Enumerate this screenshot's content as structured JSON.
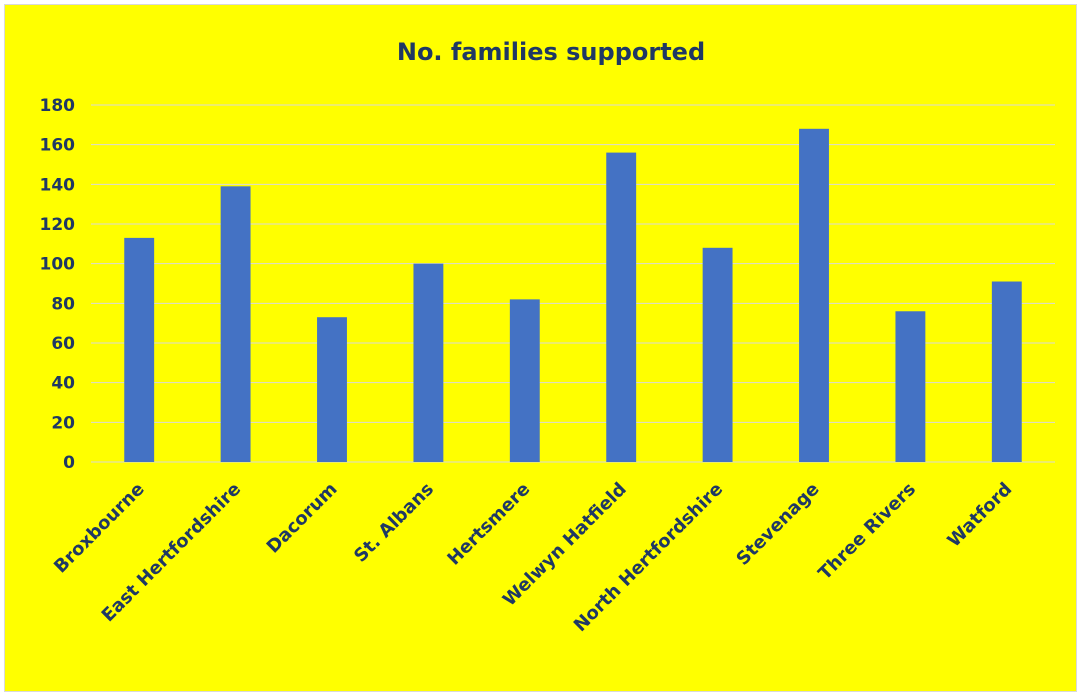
{
  "chart_data": {
    "type": "bar",
    "title": "No. families supported",
    "xlabel": "",
    "ylabel": "",
    "categories": [
      "Broxbourne",
      "East Hertfordshire",
      "Dacorum",
      "St. Albans",
      "Hertsmere",
      "Welwyn Hatfield",
      "North Hertfordshire",
      "Stevenage",
      "Three Rivers",
      "Watford"
    ],
    "values": [
      113,
      139,
      73,
      100,
      82,
      156,
      108,
      168,
      76,
      91
    ],
    "ylim": [
      0,
      180
    ],
    "yticks": [
      0,
      20,
      40,
      60,
      80,
      100,
      120,
      140,
      160,
      180
    ],
    "grid": true,
    "legend": "none",
    "colors": {
      "background": "#ffff00",
      "bar": "#4472c4",
      "text": "#1f3864",
      "gridline": "#d9d9d9"
    }
  }
}
